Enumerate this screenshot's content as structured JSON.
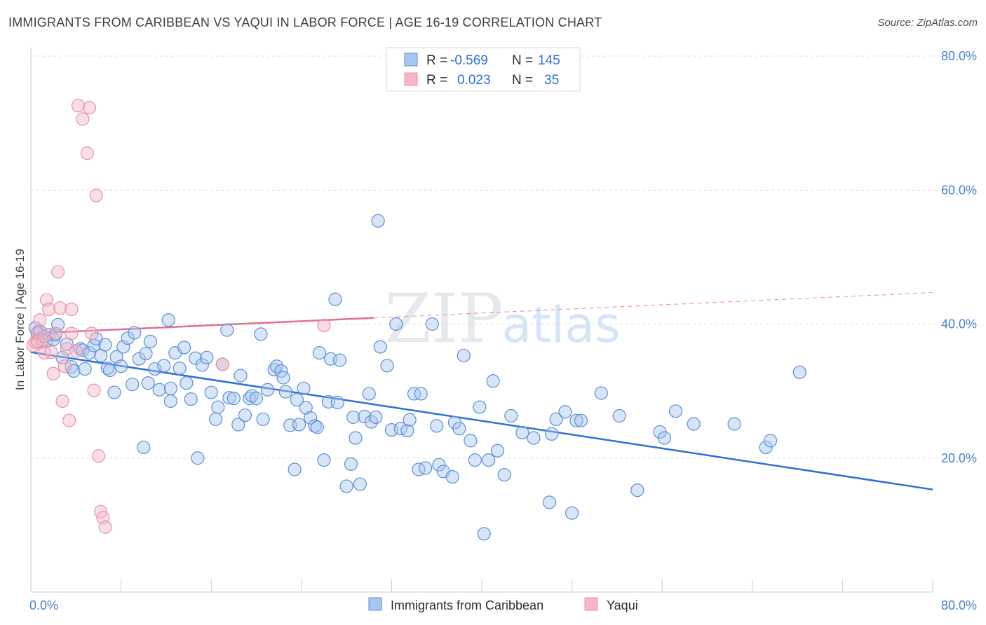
{
  "title": "IMMIGRANTS FROM CARIBBEAN VS YAQUI IN LABOR FORCE | AGE 16-19 CORRELATION CHART",
  "source": "Source: ZipAtlas.com",
  "watermark": {
    "zip": "ZIP",
    "atlas": "atlas"
  },
  "colors": {
    "blue_fill": "#a9c6ee",
    "blue_stroke": "#5b8fd6",
    "blue_line": "#2f6fd6",
    "pink_fill": "#f4b6c8",
    "pink_stroke": "#e890aa",
    "pink_line": "#e06f95",
    "grid": "#d9dce1",
    "axis_text": "#4a7fd0"
  },
  "legend": {
    "rows": [
      {
        "r_label": "R =",
        "r_value": "-0.569",
        "n_label": "N =",
        "n_value": "145"
      },
      {
        "r_label": "R =",
        "r_value": "0.023",
        "n_label": "N =",
        "n_value": "35"
      }
    ]
  },
  "chart_data": {
    "type": "scatter",
    "title": "IMMIGRANTS FROM CARIBBEAN VS YAQUI IN LABOR FORCE | AGE 16-19 CORRELATION CHART",
    "xlabel": "",
    "ylabel": "In Labor Force | Age 16-19",
    "xlim": [
      0,
      80
    ],
    "ylim": [
      0,
      80
    ],
    "x_tick_labels": [
      "0.0%",
      "80.0%"
    ],
    "y_tick_labels": [
      "20.0%",
      "40.0%",
      "60.0%",
      "80.0%"
    ],
    "y_ticks": [
      20,
      40,
      60,
      80
    ],
    "grid": true,
    "legend_position": "top-center",
    "series": [
      {
        "name": "Immigrants from Caribbean",
        "color": "#5b8fd6",
        "trend": {
          "x": [
            0,
            80
          ],
          "y": [
            35.8,
            15.3
          ],
          "solid_to": 80
        },
        "points": [
          [
            0.4,
            39.4
          ],
          [
            0.6,
            38.6
          ],
          [
            0.8,
            38.9
          ],
          [
            1.0,
            37.6
          ],
          [
            1.4,
            37.5
          ],
          [
            1.6,
            38.4
          ],
          [
            2.0,
            37.7
          ],
          [
            2.2,
            38.4
          ],
          [
            2.4,
            39.9
          ],
          [
            2.8,
            35.0
          ],
          [
            3.2,
            37.0
          ],
          [
            3.6,
            33.6
          ],
          [
            3.8,
            33.0
          ],
          [
            4.4,
            36.3
          ],
          [
            4.6,
            36.1
          ],
          [
            4.8,
            33.3
          ],
          [
            5.2,
            35.7
          ],
          [
            5.6,
            36.8
          ],
          [
            5.8,
            37.8
          ],
          [
            6.2,
            35.3
          ],
          [
            6.6,
            36.9
          ],
          [
            6.8,
            33.4
          ],
          [
            7.0,
            33.1
          ],
          [
            7.4,
            29.8
          ],
          [
            7.6,
            35.1
          ],
          [
            8.0,
            33.7
          ],
          [
            8.2,
            36.6
          ],
          [
            8.6,
            37.9
          ],
          [
            9.0,
            31.0
          ],
          [
            9.2,
            38.7
          ],
          [
            9.6,
            34.8
          ],
          [
            10.0,
            21.6
          ],
          [
            10.2,
            35.6
          ],
          [
            10.4,
            31.2
          ],
          [
            10.6,
            37.4
          ],
          [
            11.0,
            33.3
          ],
          [
            11.4,
            30.2
          ],
          [
            11.8,
            33.8
          ],
          [
            12.2,
            40.6
          ],
          [
            12.4,
            28.5
          ],
          [
            12.8,
            35.7
          ],
          [
            13.2,
            33.4
          ],
          [
            13.6,
            36.5
          ],
          [
            13.8,
            31.2
          ],
          [
            14.2,
            28.8
          ],
          [
            14.6,
            34.9
          ],
          [
            14.8,
            20.0
          ],
          [
            15.2,
            33.9
          ],
          [
            15.6,
            35.0
          ],
          [
            16.0,
            29.8
          ],
          [
            16.4,
            25.8
          ],
          [
            16.6,
            27.6
          ],
          [
            17.0,
            34.0
          ],
          [
            17.4,
            39.1
          ],
          [
            17.6,
            29.0
          ],
          [
            18.0,
            28.9
          ],
          [
            18.4,
            25.0
          ],
          [
            18.6,
            32.3
          ],
          [
            19.0,
            26.4
          ],
          [
            19.4,
            28.9
          ],
          [
            19.6,
            29.3
          ],
          [
            20.0,
            28.9
          ],
          [
            20.4,
            38.5
          ],
          [
            20.6,
            25.8
          ],
          [
            21.0,
            30.2
          ],
          [
            21.6,
            33.2
          ],
          [
            21.8,
            33.7
          ],
          [
            22.2,
            33.0
          ],
          [
            22.4,
            32.0
          ],
          [
            22.6,
            29.9
          ],
          [
            23.0,
            24.9
          ],
          [
            23.4,
            18.3
          ],
          [
            23.6,
            28.7
          ],
          [
            23.8,
            25.0
          ],
          [
            24.2,
            30.4
          ],
          [
            24.4,
            27.5
          ],
          [
            24.8,
            26.0
          ],
          [
            25.2,
            24.8
          ],
          [
            25.4,
            24.6
          ],
          [
            25.6,
            35.7
          ],
          [
            26.0,
            19.7
          ],
          [
            26.4,
            28.4
          ],
          [
            26.6,
            34.8
          ],
          [
            27.0,
            43.7
          ],
          [
            27.2,
            28.3
          ],
          [
            27.4,
            34.6
          ],
          [
            28.0,
            15.8
          ],
          [
            28.4,
            19.1
          ],
          [
            28.6,
            26.1
          ],
          [
            28.8,
            23.0
          ],
          [
            29.2,
            16.1
          ],
          [
            29.6,
            26.2
          ],
          [
            30.0,
            29.6
          ],
          [
            30.2,
            25.4
          ],
          [
            30.6,
            26.1
          ],
          [
            31.0,
            36.6
          ],
          [
            31.6,
            33.8
          ],
          [
            32.0,
            24.2
          ],
          [
            32.4,
            40.0
          ],
          [
            32.8,
            24.4
          ],
          [
            33.4,
            24.1
          ],
          [
            33.6,
            25.7
          ],
          [
            34.0,
            29.6
          ],
          [
            34.4,
            18.3
          ],
          [
            34.6,
            29.6
          ],
          [
            35.0,
            18.5
          ],
          [
            35.6,
            40.0
          ],
          [
            36.0,
            24.8
          ],
          [
            36.2,
            19.0
          ],
          [
            36.6,
            18.0
          ],
          [
            37.4,
            17.2
          ],
          [
            37.6,
            25.3
          ],
          [
            38.0,
            24.4
          ],
          [
            38.4,
            35.3
          ],
          [
            39.0,
            22.6
          ],
          [
            39.4,
            19.7
          ],
          [
            39.8,
            27.6
          ],
          [
            40.2,
            8.7
          ],
          [
            40.6,
            19.7
          ],
          [
            41.0,
            31.5
          ],
          [
            41.4,
            21.1
          ],
          [
            42.0,
            17.5
          ],
          [
            42.6,
            26.3
          ],
          [
            43.6,
            23.8
          ],
          [
            44.6,
            23.0
          ],
          [
            46.0,
            13.4
          ],
          [
            46.2,
            23.6
          ],
          [
            46.6,
            25.8
          ],
          [
            47.4,
            26.9
          ],
          [
            48.0,
            11.8
          ],
          [
            48.4,
            25.6
          ],
          [
            48.8,
            25.6
          ],
          [
            50.6,
            29.7
          ],
          [
            52.2,
            26.3
          ],
          [
            53.8,
            15.2
          ],
          [
            55.8,
            23.9
          ],
          [
            56.2,
            23.0
          ],
          [
            57.2,
            27.0
          ],
          [
            58.8,
            25.1
          ],
          [
            62.4,
            25.1
          ],
          [
            65.2,
            21.6
          ],
          [
            65.6,
            22.6
          ],
          [
            68.2,
            32.8
          ],
          [
            30.8,
            55.4
          ],
          [
            12.4,
            30.4
          ]
        ]
      },
      {
        "name": "Yaqui",
        "color": "#e890aa",
        "trend": {
          "x": [
            0,
            80
          ],
          "y": [
            38.6,
            44.7
          ],
          "solid_to": 30.4
        },
        "points": [
          [
            0.2,
            36.8
          ],
          [
            0.4,
            37.3
          ],
          [
            0.6,
            38.8
          ],
          [
            0.8,
            40.6
          ],
          [
            1.0,
            37.3
          ],
          [
            1.2,
            35.7
          ],
          [
            1.4,
            43.6
          ],
          [
            1.6,
            42.2
          ],
          [
            1.8,
            35.8
          ],
          [
            2.0,
            32.6
          ],
          [
            2.2,
            38.6
          ],
          [
            2.4,
            47.8
          ],
          [
            2.6,
            42.4
          ],
          [
            2.8,
            28.5
          ],
          [
            3.0,
            33.7
          ],
          [
            3.2,
            36.3
          ],
          [
            3.4,
            25.6
          ],
          [
            3.6,
            42.2
          ],
          [
            4.0,
            36.0
          ],
          [
            4.2,
            72.6
          ],
          [
            4.6,
            70.6
          ],
          [
            5.0,
            65.5
          ],
          [
            5.2,
            72.3
          ],
          [
            5.4,
            38.6
          ],
          [
            5.6,
            30.1
          ],
          [
            5.8,
            59.2
          ],
          [
            6.0,
            20.3
          ],
          [
            6.2,
            12.0
          ],
          [
            6.4,
            11.1
          ],
          [
            6.6,
            9.7
          ],
          [
            0.6,
            37.4
          ],
          [
            1.2,
            38.2
          ],
          [
            17.0,
            34.0
          ],
          [
            26.0,
            39.8
          ],
          [
            3.6,
            38.6
          ]
        ]
      }
    ]
  }
}
